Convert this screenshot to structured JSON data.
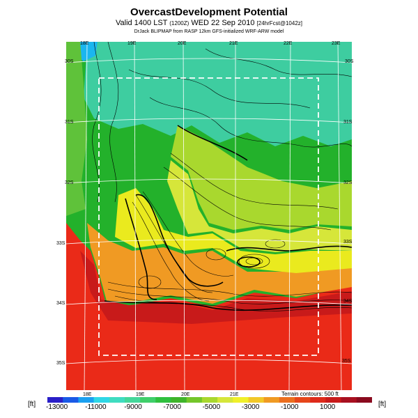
{
  "header": {
    "title": "OvercastDevelopment Potential",
    "valid_prefix": "Valid 1400 LST",
    "valid_small": "(1200Z)",
    "valid_date": "WED 22 Sep 2010",
    "valid_fcst": "[24hrFcst@1042z]",
    "credit": "DrJack BLIPMAP from RASP 12km GFS-initialized WRF-ARW model"
  },
  "map": {
    "top_lon_labels": [
      "18E",
      "19E",
      "20E",
      "21E",
      "22E",
      "23E"
    ],
    "bottom_lon_labels": [
      "18E",
      "19E",
      "20E",
      "21E"
    ],
    "left_lat_labels": [
      "30S",
      "31S",
      "32S",
      "33S",
      "34S",
      "35S"
    ],
    "right_lat_labels": [
      "30S",
      "31S",
      "32S",
      "33S",
      "34S",
      "35S"
    ],
    "terrain_note": "Terrain contours: 500 ft",
    "colors": {
      "ocean_red": "#ea2a18",
      "land_green": "#23b12b",
      "north_teal": "#3ecda0",
      "ridge_yellow": "#eaea1e",
      "domain_box": "#ffffff"
    }
  },
  "colorbar": {
    "unit_left": "[ft]",
    "unit_right": "[ft]",
    "labels": [
      "-13000",
      "-11000",
      "-9000",
      "-7000",
      "-5000",
      "-3000",
      "-1000",
      "1000"
    ],
    "colors": [
      "#2a1fc8",
      "#1a5ae6",
      "#1aa0f0",
      "#2fd7e6",
      "#3fdcc0",
      "#44d79a",
      "#3fcf6a",
      "#2fc03e",
      "#3fb42a",
      "#74c62a",
      "#a9d82e",
      "#d6e63a",
      "#f0f02a",
      "#f2c829",
      "#f09a23",
      "#ec6e1e",
      "#e6461a",
      "#de2a1a",
      "#c81a1a",
      "#a81020",
      "#8a0a1e"
    ]
  }
}
